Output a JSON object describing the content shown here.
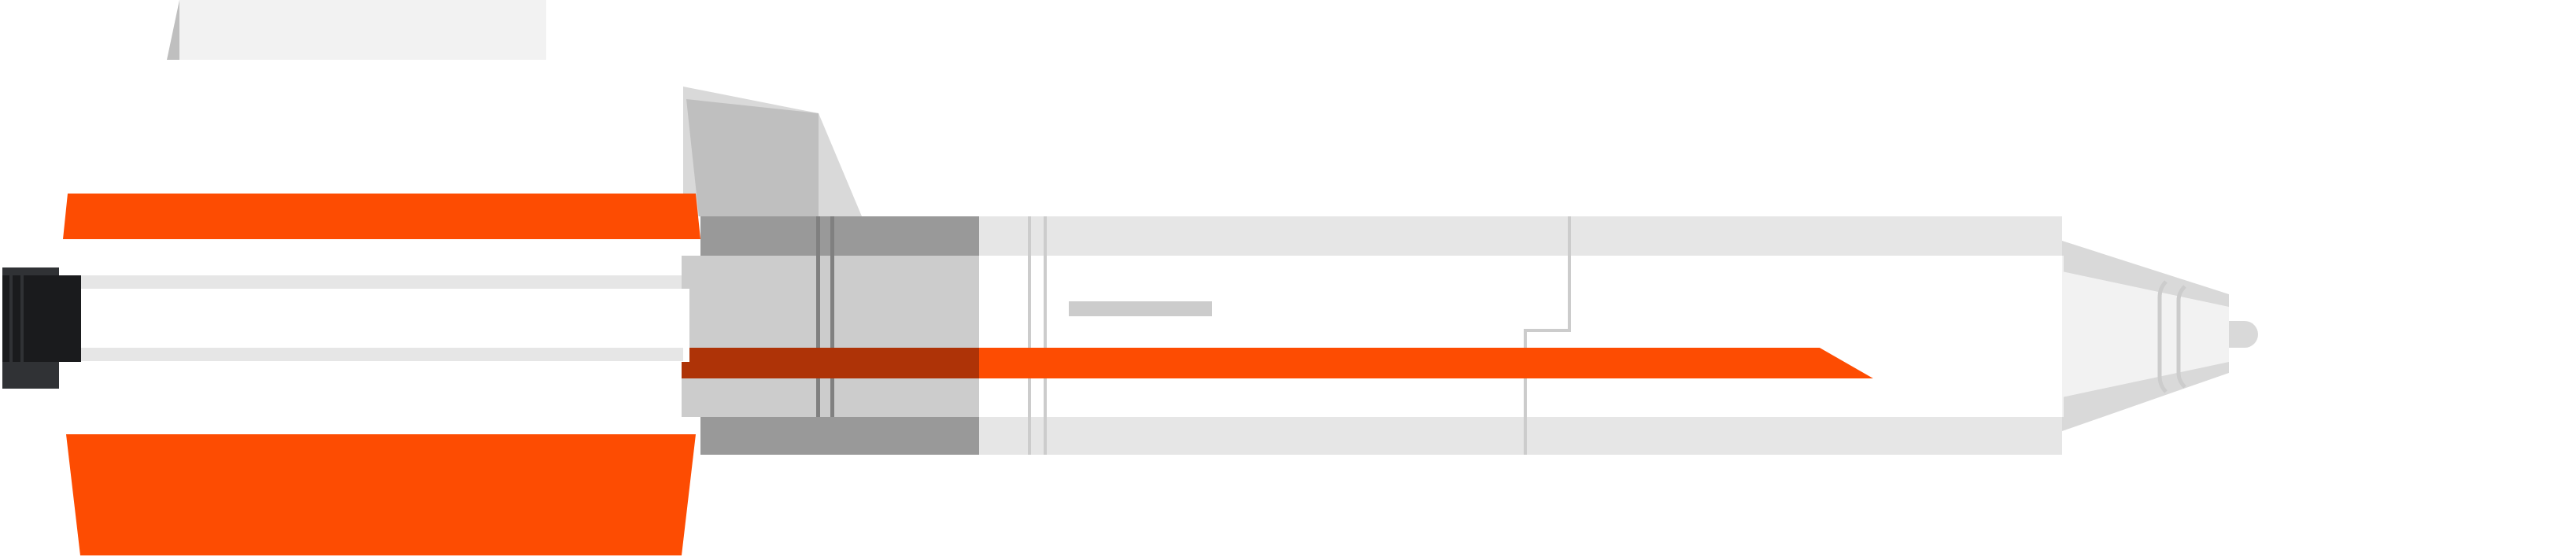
{
  "illustration": {
    "subject": "rocket-side-view",
    "colors": {
      "background": "#ffffff",
      "body": "#e6e6e6",
      "body_light": "#f2f2f2",
      "panel_light": "#cccccc",
      "panel_mid": "#bfbfbf",
      "panel_dark": "#999999",
      "line_dark": "#808080",
      "accent": "#fd4c02",
      "accent_dark": "#ae3307",
      "nozzle": "#1a1b1d",
      "nozzle_light": "#303235",
      "nose_shade": "#d9d9d9"
    }
  }
}
